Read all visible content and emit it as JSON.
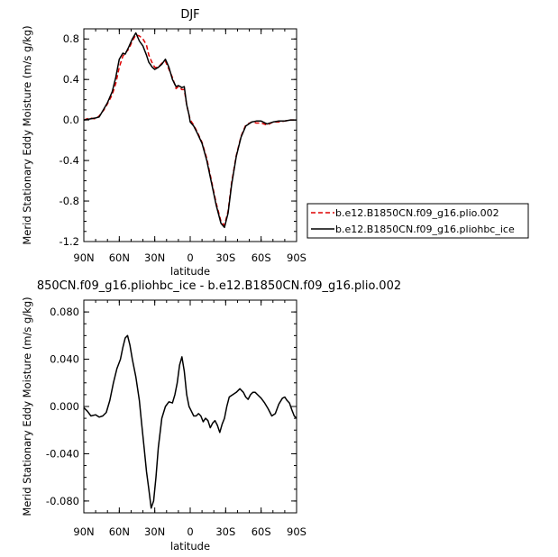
{
  "chart_data": [
    {
      "type": "line",
      "title": "DJF",
      "xlabel": "latitude",
      "ylabel": "Merid Stationary Eddy Moisture (m/s g/kg)",
      "xlim": [
        90,
        -90
      ],
      "ylim": [
        -1.2,
        0.9
      ],
      "x_ticks": [
        90,
        60,
        30,
        0,
        -30,
        -60,
        -90
      ],
      "x_tick_labels": [
        "90N",
        "60N",
        "30N",
        "0",
        "30S",
        "60S",
        "90S"
      ],
      "y_ticks": [
        -1.2,
        -0.8,
        -0.4,
        0.0,
        0.4,
        0.8
      ],
      "y_tick_labels": [
        "-1.2",
        "-0.8",
        "-0.4",
        "0.0",
        "0.4",
        "0.8"
      ],
      "legend_position": "right",
      "series": [
        {
          "name": "b.e12.B1850CN.f09_g16.plio.002",
          "color": "#dd0000",
          "dash": "dashed",
          "x": [
            90,
            85,
            80,
            77,
            73,
            70,
            66,
            63,
            60,
            57,
            55,
            52,
            49,
            46,
            43,
            40,
            37,
            35,
            32,
            30,
            27,
            24,
            21,
            18,
            15,
            12,
            10,
            7,
            5,
            3,
            1,
            0,
            -3,
            -6,
            -10,
            -14,
            -18,
            -22,
            -26,
            -29,
            -32,
            -35,
            -39,
            -43,
            -47,
            -52,
            -56,
            -60,
            -65,
            -70,
            -75,
            -80,
            -85,
            -90
          ],
          "values": [
            0.0,
            0.02,
            0.01,
            0.04,
            0.1,
            0.16,
            0.25,
            0.36,
            0.52,
            0.63,
            0.66,
            0.7,
            0.78,
            0.84,
            0.83,
            0.8,
            0.74,
            0.64,
            0.56,
            0.52,
            0.52,
            0.56,
            0.58,
            0.5,
            0.42,
            0.31,
            0.33,
            0.3,
            0.3,
            0.15,
            0.05,
            0.0,
            -0.05,
            -0.12,
            -0.22,
            -0.38,
            -0.6,
            -0.82,
            -1.0,
            -1.04,
            -0.9,
            -0.62,
            -0.35,
            -0.16,
            -0.05,
            -0.02,
            -0.03,
            -0.03,
            -0.05,
            -0.02,
            -0.02,
            -0.01,
            0.0,
            0.0
          ]
        },
        {
          "name": "b.e12.B1850CN.f09_g16.pliohbc_ice",
          "color": "#000000",
          "dash": "solid",
          "x": [
            90,
            85,
            80,
            77,
            73,
            70,
            66,
            63,
            60,
            57,
            55,
            52,
            49,
            46,
            43,
            40,
            37,
            35,
            32,
            30,
            27,
            24,
            21,
            18,
            15,
            12,
            10,
            7,
            5,
            3,
            1,
            0,
            -3,
            -6,
            -10,
            -14,
            -18,
            -22,
            -26,
            -29,
            -32,
            -35,
            -39,
            -43,
            -47,
            -52,
            -56,
            -60,
            -65,
            -70,
            -75,
            -80,
            -85,
            -90
          ],
          "values": [
            0.0,
            0.01,
            0.02,
            0.03,
            0.11,
            0.17,
            0.28,
            0.42,
            0.6,
            0.66,
            0.65,
            0.72,
            0.8,
            0.86,
            0.78,
            0.73,
            0.64,
            0.57,
            0.52,
            0.5,
            0.52,
            0.55,
            0.6,
            0.52,
            0.4,
            0.33,
            0.34,
            0.32,
            0.33,
            0.15,
            0.05,
            -0.02,
            -0.06,
            -0.13,
            -0.23,
            -0.4,
            -0.62,
            -0.84,
            -1.02,
            -1.06,
            -0.92,
            -0.64,
            -0.36,
            -0.17,
            -0.06,
            -0.02,
            -0.01,
            -0.01,
            -0.04,
            -0.02,
            -0.01,
            -0.01,
            0.0,
            0.0
          ]
        }
      ]
    },
    {
      "type": "line",
      "title": "850CN.f09_g16.pliohbc_ice - b.e12.B1850CN.f09_g16.plio.002",
      "xlabel": "latitude",
      "ylabel": "Merid Stationary Eddy Moisture (m/s g/kg)",
      "xlim": [
        90,
        -90
      ],
      "ylim": [
        -0.09,
        0.09
      ],
      "x_ticks": [
        90,
        60,
        30,
        0,
        -30,
        -60,
        -90
      ],
      "x_tick_labels": [
        "90N",
        "60N",
        "30N",
        "0",
        "30S",
        "60S",
        "90S"
      ],
      "y_ticks": [
        -0.08,
        -0.04,
        0.0,
        0.04,
        0.08
      ],
      "y_tick_labels": [
        "-0.080",
        "-0.040",
        "0.000",
        "0.040",
        "0.080"
      ],
      "series": [
        {
          "color": "#000000",
          "dash": "solid",
          "x": [
            90,
            87,
            84,
            80,
            77,
            74,
            71,
            68,
            65,
            62,
            59,
            57,
            55,
            53,
            51,
            49,
            46,
            43,
            41,
            39,
            37,
            35,
            33,
            31,
            29,
            27,
            24,
            21,
            18,
            15,
            13,
            11,
            9,
            7,
            5,
            3,
            1,
            -1,
            -3,
            -5,
            -7,
            -9,
            -11,
            -13,
            -15,
            -17,
            -19,
            -21,
            -23,
            -25,
            -27,
            -29,
            -31,
            -33,
            -36,
            -39,
            -42,
            -45,
            -47,
            -49,
            -51,
            -53,
            -55,
            -57,
            -60,
            -63,
            -66,
            -69,
            -72,
            -75,
            -78,
            -80,
            -82,
            -84,
            -86,
            -88,
            -90
          ],
          "values": [
            -0.001,
            -0.004,
            -0.008,
            -0.007,
            -0.009,
            -0.008,
            -0.005,
            0.005,
            0.02,
            0.032,
            0.04,
            0.05,
            0.058,
            0.06,
            0.052,
            0.04,
            0.025,
            0.005,
            -0.015,
            -0.035,
            -0.055,
            -0.07,
            -0.086,
            -0.08,
            -0.06,
            -0.035,
            -0.01,
            0.0,
            0.004,
            0.003,
            0.01,
            0.02,
            0.035,
            0.042,
            0.03,
            0.01,
            0.0,
            -0.004,
            -0.008,
            -0.008,
            -0.006,
            -0.008,
            -0.013,
            -0.01,
            -0.012,
            -0.018,
            -0.014,
            -0.012,
            -0.016,
            -0.022,
            -0.015,
            -0.01,
            0.0,
            0.008,
            0.01,
            0.012,
            0.015,
            0.012,
            0.008,
            0.006,
            0.01,
            0.012,
            0.012,
            0.01,
            0.007,
            0.003,
            -0.002,
            -0.008,
            -0.006,
            0.002,
            0.007,
            0.008,
            0.005,
            0.003,
            -0.003,
            -0.008,
            -0.01
          ]
        }
      ]
    }
  ]
}
